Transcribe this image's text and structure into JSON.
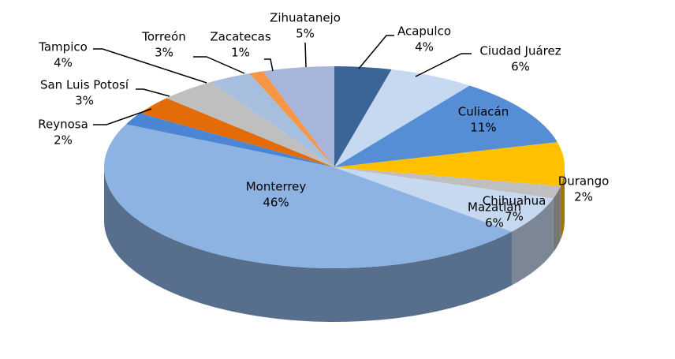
{
  "chart_data": {
    "type": "pie",
    "categories": [
      "Acapulco",
      "Ciudad Juárez",
      "Culiacán",
      "Chihuahua",
      "Durango",
      "Mazatlán",
      "Monterrey",
      "Reynosa",
      "San Luis Potosí",
      "Tampico",
      "Torreón",
      "Zacatecas",
      "Zihuatanejo"
    ],
    "values": [
      4,
      6,
      11,
      7,
      2,
      6,
      46,
      2,
      3,
      4,
      3,
      1,
      5
    ],
    "value_labels": [
      "4%",
      "6%",
      "11%",
      "7%",
      "2%",
      "6%",
      "46%",
      "2%",
      "3%",
      "4%",
      "3%",
      "1%",
      "5%"
    ],
    "colors": [
      "#3b6497",
      "#c6d9f1",
      "#558ed5",
      "#ffc000",
      "#bfbfbf",
      "#c6d9f1",
      "#8db3e2",
      "#4a86d4",
      "#e36c09",
      "#bfbfbf",
      "#a6bfde",
      "#f79646",
      "#a7b5da"
    ]
  }
}
